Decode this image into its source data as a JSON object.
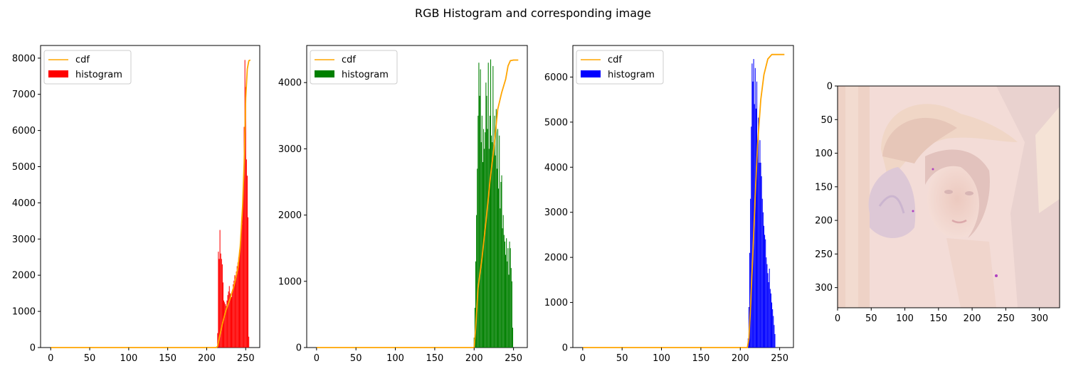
{
  "figure": {
    "title": "RGB Histogram and corresponding image"
  },
  "chart_data": [
    {
      "type": "bar",
      "channel": "red",
      "color": "#ff0000",
      "cdf_color": "#ffa500",
      "xlim": [
        -13,
        268
      ],
      "ylim": [
        0,
        8350
      ],
      "xticks": [
        0,
        50,
        100,
        150,
        200,
        250
      ],
      "yticks": [
        0,
        1000,
        2000,
        3000,
        4000,
        5000,
        6000,
        7000,
        8000
      ],
      "legend": {
        "position": "upper-left",
        "entries": [
          "cdf",
          "histogram"
        ]
      },
      "bins": [
        [
          214,
          400
        ],
        [
          215,
          2650
        ],
        [
          216,
          2450
        ],
        [
          217,
          3250
        ],
        [
          218,
          2600
        ],
        [
          219,
          2450
        ],
        [
          220,
          2300
        ],
        [
          221,
          1800
        ],
        [
          222,
          1300
        ],
        [
          223,
          1250
        ],
        [
          224,
          1200
        ],
        [
          225,
          1150
        ],
        [
          226,
          1300
        ],
        [
          227,
          1450
        ],
        [
          228,
          1550
        ],
        [
          229,
          1700
        ],
        [
          230,
          1500
        ],
        [
          231,
          1450
        ],
        [
          232,
          1400
        ],
        [
          233,
          1600
        ],
        [
          234,
          1750
        ],
        [
          235,
          1850
        ],
        [
          236,
          2000
        ],
        [
          237,
          1900
        ],
        [
          238,
          2100
        ],
        [
          239,
          2250
        ],
        [
          240,
          2350
        ],
        [
          241,
          2500
        ],
        [
          242,
          2700
        ],
        [
          243,
          2900
        ],
        [
          244,
          3100
        ],
        [
          245,
          3400
        ],
        [
          246,
          3800
        ],
        [
          247,
          4400
        ],
        [
          248,
          6100
        ],
        [
          249,
          7950
        ],
        [
          250,
          7200
        ],
        [
          251,
          5200
        ],
        [
          252,
          4750
        ],
        [
          253,
          3600
        ],
        [
          254,
          300
        ]
      ],
      "cdf": [
        [
          0,
          0
        ],
        [
          212,
          0
        ],
        [
          214,
          30
        ],
        [
          216,
          250
        ],
        [
          220,
          650
        ],
        [
          225,
          1050
        ],
        [
          230,
          1350
        ],
        [
          235,
          1700
        ],
        [
          240,
          2200
        ],
        [
          243,
          2800
        ],
        [
          246,
          3900
        ],
        [
          248,
          5100
        ],
        [
          250,
          6900
        ],
        [
          252,
          7700
        ],
        [
          254,
          7930
        ],
        [
          256,
          7950
        ]
      ]
    },
    {
      "type": "bar",
      "channel": "green",
      "color": "#008000",
      "cdf_color": "#ffa500",
      "xlim": [
        -12.5,
        267.5
      ],
      "ylim": [
        0,
        4560
      ],
      "xticks": [
        0,
        50,
        100,
        150,
        200,
        250
      ],
      "yticks": [
        0,
        1000,
        2000,
        3000,
        4000
      ],
      "legend": {
        "position": "upper-left",
        "entries": [
          "cdf",
          "histogram"
        ]
      },
      "bins": [
        [
          200,
          150
        ],
        [
          201,
          600
        ],
        [
          202,
          1300
        ],
        [
          203,
          2000
        ],
        [
          204,
          2700
        ],
        [
          205,
          3500
        ],
        [
          206,
          4300
        ],
        [
          207,
          3800
        ],
        [
          208,
          4200
        ],
        [
          209,
          3100
        ],
        [
          210,
          3500
        ],
        [
          211,
          2800
        ],
        [
          212,
          3300
        ],
        [
          213,
          3000
        ],
        [
          214,
          3250
        ],
        [
          215,
          4000
        ],
        [
          216,
          3800
        ],
        [
          217,
          3300
        ],
        [
          218,
          4300
        ],
        [
          219,
          3000
        ],
        [
          220,
          3500
        ],
        [
          221,
          4350
        ],
        [
          222,
          3200
        ],
        [
          223,
          3100
        ],
        [
          224,
          4250
        ],
        [
          225,
          3000
        ],
        [
          226,
          3500
        ],
        [
          227,
          2900
        ],
        [
          228,
          3600
        ],
        [
          229,
          2700
        ],
        [
          230,
          3300
        ],
        [
          231,
          2400
        ],
        [
          232,
          3200
        ],
        [
          233,
          2100
        ],
        [
          234,
          2500
        ],
        [
          235,
          2600
        ],
        [
          236,
          1800
        ],
        [
          237,
          2000
        ],
        [
          238,
          1700
        ],
        [
          239,
          1600
        ],
        [
          240,
          1400
        ],
        [
          241,
          1650
        ],
        [
          242,
          1300
        ],
        [
          243,
          1500
        ],
        [
          244,
          1100
        ],
        [
          245,
          1600
        ],
        [
          246,
          1500
        ],
        [
          247,
          1200
        ],
        [
          248,
          1000
        ],
        [
          249,
          300
        ]
      ],
      "cdf": [
        [
          0,
          0
        ],
        [
          200,
          0
        ],
        [
          202,
          300
        ],
        [
          205,
          900
        ],
        [
          210,
          1350
        ],
        [
          215,
          1900
        ],
        [
          220,
          2500
        ],
        [
          225,
          3000
        ],
        [
          230,
          3600
        ],
        [
          235,
          3850
        ],
        [
          240,
          4050
        ],
        [
          243,
          4250
        ],
        [
          246,
          4330
        ],
        [
          250,
          4340
        ],
        [
          256,
          4340
        ]
      ]
    },
    {
      "type": "bar",
      "channel": "blue",
      "color": "#0000ff",
      "cdf_color": "#ffa500",
      "xlim": [
        -12.5,
        267.5
      ],
      "ylim": [
        0,
        6700
      ],
      "xticks": [
        0,
        50,
        100,
        150,
        200,
        250
      ],
      "yticks": [
        0,
        1000,
        2000,
        3000,
        4000,
        5000,
        6000
      ],
      "legend": {
        "position": "upper-left",
        "entries": [
          "cdf",
          "histogram"
        ]
      },
      "bins": [
        [
          210,
          200
        ],
        [
          211,
          900
        ],
        [
          212,
          2100
        ],
        [
          213,
          3300
        ],
        [
          214,
          4900
        ],
        [
          215,
          6300
        ],
        [
          216,
          5900
        ],
        [
          217,
          6400
        ],
        [
          218,
          5400
        ],
        [
          219,
          6200
        ],
        [
          220,
          5300
        ],
        [
          221,
          5900
        ],
        [
          222,
          4600
        ],
        [
          223,
          5100
        ],
        [
          224,
          4100
        ],
        [
          225,
          4600
        ],
        [
          226,
          4100
        ],
        [
          227,
          3800
        ],
        [
          228,
          3300
        ],
        [
          229,
          3000
        ],
        [
          230,
          2700
        ],
        [
          231,
          2500
        ],
        [
          232,
          2400
        ],
        [
          233,
          2000
        ],
        [
          234,
          1850
        ],
        [
          235,
          1650
        ],
        [
          236,
          1450
        ],
        [
          237,
          1750
        ],
        [
          238,
          1300
        ],
        [
          239,
          1200
        ],
        [
          240,
          1000
        ],
        [
          241,
          850
        ],
        [
          242,
          700
        ],
        [
          243,
          500
        ],
        [
          244,
          300
        ]
      ],
      "cdf": [
        [
          0,
          0
        ],
        [
          209,
          0
        ],
        [
          211,
          200
        ],
        [
          213,
          900
        ],
        [
          216,
          2100
        ],
        [
          219,
          3400
        ],
        [
          222,
          4500
        ],
        [
          226,
          5500
        ],
        [
          230,
          6050
        ],
        [
          235,
          6400
        ],
        [
          240,
          6500
        ],
        [
          244,
          6500
        ],
        [
          256,
          6500
        ]
      ]
    },
    {
      "type": "image",
      "xlim": [
        0,
        330
      ],
      "ylim": [
        330,
        0
      ],
      "xticks": [
        0,
        50,
        100,
        150,
        200,
        250,
        300
      ],
      "yticks": [
        0,
        50,
        100,
        150,
        200,
        250,
        300
      ]
    }
  ]
}
